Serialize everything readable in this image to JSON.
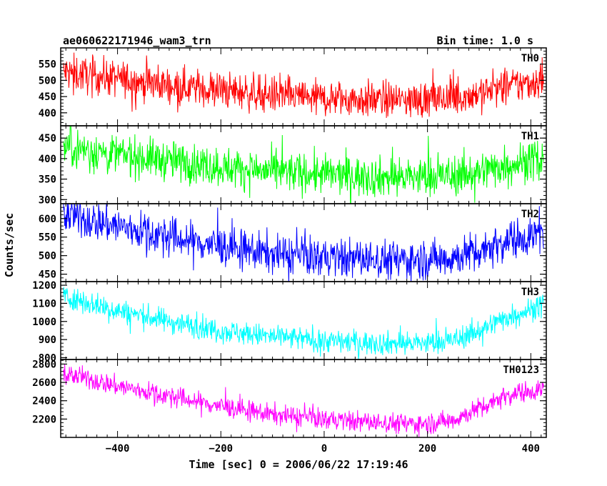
{
  "chart_data": {
    "type": "line",
    "title": "ae060622171946_wam3_trn",
    "subtitle": "Bin time: 1.0 s",
    "xlabel": "Time [sec] 0 = 2006/06/22 17:19:46",
    "ylabel": "Counts/sec",
    "x_range": [
      -510,
      430
    ],
    "x_ticks": [
      -400,
      -200,
      0,
      200,
      400
    ],
    "grid": false,
    "series": [
      {
        "name": "TH0",
        "color": "#ff0000",
        "ylim": [
          360,
          600
        ],
        "yticks": [
          400,
          450,
          500,
          550
        ],
        "noise": 28,
        "x_end": 425,
        "trend_x": [
          -505,
          -400,
          -300,
          -200,
          -100,
          0,
          100,
          200,
          250,
          300,
          350,
          425
        ],
        "trend_y": [
          525,
          505,
          485,
          470,
          455,
          445,
          440,
          440,
          445,
          460,
          480,
          500
        ]
      },
      {
        "name": "TH1",
        "color": "#00ff00",
        "ylim": [
          290,
          480
        ],
        "yticks": [
          300,
          350,
          400,
          450
        ],
        "noise": 24,
        "x_end": 425,
        "trend_x": [
          -505,
          -400,
          -300,
          -200,
          -100,
          0,
          100,
          200,
          250,
          300,
          350,
          425
        ],
        "trend_y": [
          430,
          410,
          395,
          380,
          368,
          362,
          355,
          355,
          358,
          368,
          385,
          400
        ]
      },
      {
        "name": "TH2",
        "color": "#0000ff",
        "ylim": [
          430,
          640
        ],
        "yticks": [
          450,
          500,
          550,
          600
        ],
        "noise": 26,
        "x_end": 425,
        "trend_x": [
          -505,
          -400,
          -300,
          -200,
          -100,
          0,
          100,
          200,
          250,
          300,
          350,
          425
        ],
        "trend_y": [
          610,
          580,
          550,
          525,
          505,
          495,
          490,
          490,
          495,
          515,
          540,
          560
        ]
      },
      {
        "name": "TH3",
        "color": "#00ffff",
        "ylim": [
          790,
          1220
        ],
        "yticks": [
          800,
          900,
          1000,
          1100,
          1200
        ],
        "noise": 32,
        "x_end": 425,
        "trend_x": [
          -505,
          -400,
          -300,
          -200,
          -100,
          0,
          100,
          200,
          250,
          300,
          350,
          425
        ],
        "trend_y": [
          1140,
          1060,
          1000,
          950,
          915,
          895,
          880,
          880,
          895,
          950,
          1020,
          1090
        ]
      },
      {
        "name": "TH0123",
        "color": "#ff00ff",
        "ylim": [
          2000,
          2850
        ],
        "yticks": [
          2200,
          2400,
          2600,
          2800
        ],
        "noise": 55,
        "x_end": 425,
        "trend_x": [
          -505,
          -400,
          -300,
          -200,
          -100,
          0,
          100,
          200,
          250,
          300,
          350,
          425
        ],
        "trend_y": [
          2700,
          2560,
          2450,
          2340,
          2250,
          2200,
          2160,
          2150,
          2190,
          2320,
          2460,
          2530
        ]
      }
    ]
  }
}
